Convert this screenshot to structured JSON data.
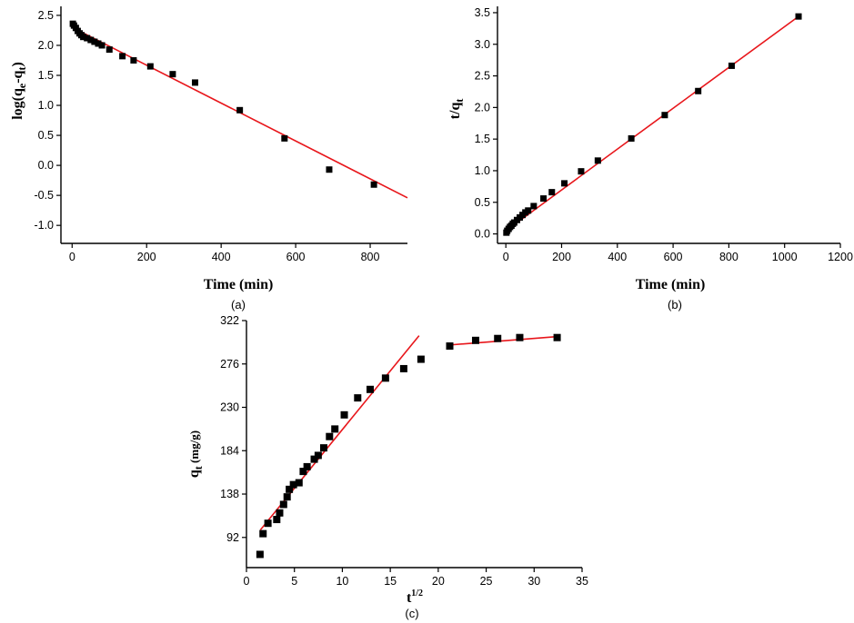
{
  "chart_data": [
    {
      "type": "scatter",
      "panel_label": "(a)",
      "ylabel_main": "log(q",
      "ylabel_sub1": "e",
      "ylabel_mid": "-q",
      "ylabel_sub2": "t",
      "ylabel_end": ")",
      "xlabel": "Time (min)",
      "xlim": [
        -30,
        900
      ],
      "ylim": [
        -1.3,
        2.65
      ],
      "xticks": [
        0,
        200,
        400,
        600,
        800
      ],
      "yticks": [
        -1.0,
        -0.5,
        0.0,
        0.5,
        1.0,
        1.5,
        2.0,
        2.5
      ],
      "ytick_labels": [
        "-1.0",
        "-0.5",
        "0.0",
        "0.5",
        "1.0",
        "1.5",
        "2.0",
        "2.5"
      ],
      "series": [
        {
          "name": "data",
          "x": [
            2,
            5,
            10,
            15,
            20,
            25,
            30,
            40,
            50,
            60,
            70,
            80,
            100,
            135,
            165,
            210,
            270,
            330,
            450,
            570,
            690,
            810
          ],
          "y": [
            2.36,
            2.33,
            2.29,
            2.24,
            2.2,
            2.17,
            2.14,
            2.12,
            2.09,
            2.06,
            2.03,
            2.0,
            1.93,
            1.82,
            1.75,
            1.65,
            1.52,
            1.38,
            0.92,
            0.45,
            -0.07,
            -0.32
          ]
        },
        {
          "name": "linear fit",
          "x": [
            0,
            900
          ],
          "y": [
            2.3,
            -0.54
          ]
        }
      ]
    },
    {
      "type": "scatter",
      "panel_label": "(b)",
      "ylabel_main": "t/q",
      "ylabel_sub": "t",
      "xlabel": "Time (min)",
      "xlim": [
        -30,
        1200
      ],
      "ylim": [
        -0.15,
        3.6
      ],
      "xticks": [
        0,
        200,
        400,
        600,
        800,
        1000,
        1200
      ],
      "yticks": [
        0.0,
        0.5,
        1.0,
        1.5,
        2.0,
        2.5,
        3.0,
        3.5
      ],
      "ytick_labels": [
        "0.0",
        "0.5",
        "1.0",
        "1.5",
        "2.0",
        "2.5",
        "3.0",
        "3.5"
      ],
      "series": [
        {
          "name": "data",
          "x": [
            2,
            5,
            10,
            15,
            20,
            25,
            30,
            40,
            50,
            60,
            70,
            80,
            100,
            135,
            165,
            210,
            270,
            330,
            450,
            570,
            690,
            810,
            1050
          ],
          "y": [
            0.02,
            0.05,
            0.08,
            0.11,
            0.13,
            0.16,
            0.18,
            0.22,
            0.26,
            0.3,
            0.34,
            0.37,
            0.44,
            0.56,
            0.66,
            0.8,
            0.99,
            1.16,
            1.51,
            1.88,
            2.26,
            2.66,
            3.44
          ]
        },
        {
          "name": "linear fit",
          "x": [
            0,
            1050
          ],
          "y": [
            0.05,
            3.44
          ]
        }
      ]
    },
    {
      "type": "scatter",
      "panel_label": "(c)",
      "ylabel_main": "q",
      "ylabel_sub": "t",
      "ylabel_unit": " (mg/g)",
      "xlabel_base": "t",
      "xlabel_sup": "1/2",
      "xlim": [
        0,
        35
      ],
      "ylim": [
        60,
        322
      ],
      "xticks": [
        0,
        5,
        10,
        15,
        20,
        25,
        30,
        35
      ],
      "yticks": [
        92,
        138,
        184,
        230,
        276,
        322
      ],
      "ytick_labels": [
        "92",
        "138",
        "184",
        "230",
        "276",
        "322"
      ],
      "series": [
        {
          "name": "data",
          "x": [
            1.41,
            1.73,
            2.24,
            3.16,
            3.46,
            3.87,
            4.24,
            4.47,
            4.9,
            5.48,
            5.92,
            6.32,
            7.07,
            7.48,
            8.06,
            8.66,
            9.22,
            10.2,
            11.6,
            12.9,
            14.5,
            16.4,
            18.2,
            21.2,
            23.9,
            26.2,
            28.5,
            32.4
          ],
          "y": [
            74,
            96,
            107,
            111,
            118,
            127,
            135,
            143,
            148,
            150,
            162,
            167,
            175,
            179,
            187,
            199,
            207,
            222,
            240,
            249,
            261,
            271,
            281,
            295,
            301,
            303,
            304,
            304
          ]
        },
        {
          "name": "fit segment 1",
          "x": [
            1.45,
            18.0
          ],
          "y": [
            100,
            306
          ]
        },
        {
          "name": "fit segment 2",
          "x": [
            21.0,
            32.5
          ],
          "y": [
            296,
            305
          ]
        }
      ]
    }
  ]
}
